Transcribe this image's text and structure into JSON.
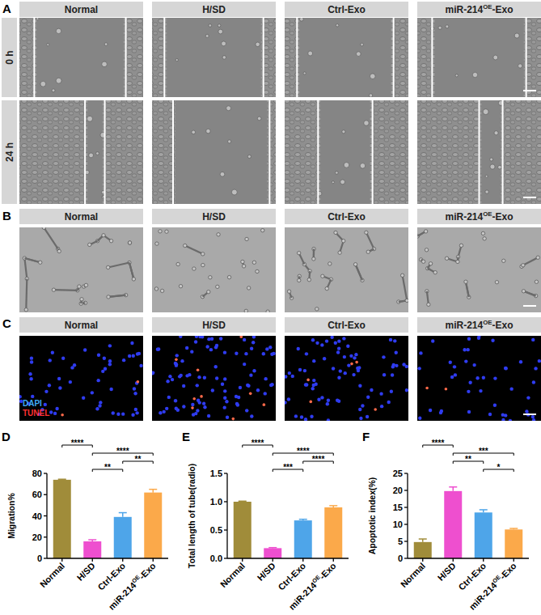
{
  "panels": [
    {
      "label": "A",
      "columns": [
        "Normal",
        "H/SD",
        "Ctrl-Exo",
        "miR-214OE-Exo"
      ],
      "rows": [
        "0 h",
        "24 h"
      ]
    },
    {
      "label": "B",
      "columns": [
        "Normal",
        "H/SD",
        "Ctrl-Exo",
        "miR-214OE-Exo"
      ]
    },
    {
      "label": "C",
      "columns": [
        "Normal",
        "H/SD",
        "Ctrl-Exo",
        "miR-214OE-Exo"
      ],
      "stain_labels": [
        "DAPI",
        "TUNEL"
      ]
    }
  ],
  "chart_data": [
    {
      "panel_label": "D",
      "type": "bar",
      "y_label": "Migration%",
      "categories": [
        "Normal",
        "H/SD",
        "Ctrl-Exo",
        "miR-214OE-Exo"
      ],
      "values": [
        74,
        16,
        39,
        62
      ],
      "errors": [
        0.5,
        1.5,
        4,
        3
      ],
      "colors": [
        "#a08c3a",
        "#ee4fcf",
        "#4ea5e9",
        "#fba94a"
      ],
      "ylim": [
        0,
        80
      ],
      "yticks": [
        0,
        20,
        40,
        60,
        80
      ],
      "comparisons": [
        {
          "between": [
            "H/SD",
            "Ctrl-Exo"
          ],
          "label": "**"
        },
        {
          "between": [
            "Ctrl-Exo",
            "miR-214OE-Exo"
          ],
          "label": "**"
        },
        {
          "between": [
            "H/SD",
            "miR-214OE-Exo"
          ],
          "label": "****"
        },
        {
          "between": [
            "Normal",
            "H/SD"
          ],
          "label": "****"
        }
      ]
    },
    {
      "panel_label": "E",
      "type": "bar",
      "y_label": "Total length of tube(radio)",
      "categories": [
        "Normal",
        "H/SD",
        "Ctrl-Exo",
        "miR-214OE-Exo"
      ],
      "values": [
        1.0,
        0.18,
        0.67,
        0.9
      ],
      "errors": [
        0.01,
        0.01,
        0.02,
        0.03
      ],
      "colors": [
        "#a08c3a",
        "#ee4fcf",
        "#4ea5e9",
        "#fba94a"
      ],
      "ylim": [
        0,
        1.5
      ],
      "yticks": [
        {
          "value": 0,
          "label": "0.0"
        },
        {
          "value": 0.5,
          "label": "0.5"
        },
        {
          "value": 1,
          "label": "1.0"
        },
        {
          "value": 1.5,
          "label": "1.5"
        }
      ],
      "comparisons": [
        {
          "between": [
            "H/SD",
            "Ctrl-Exo"
          ],
          "label": "***"
        },
        {
          "between": [
            "Ctrl-Exo",
            "miR-214OE-Exo"
          ],
          "label": "****"
        },
        {
          "between": [
            "H/SD",
            "miR-214OE-Exo"
          ],
          "label": "****"
        },
        {
          "between": [
            "Normal",
            "H/SD"
          ],
          "label": "****"
        }
      ]
    },
    {
      "panel_label": "F",
      "type": "bar",
      "y_label": "Apoptotic index(%)",
      "categories": [
        "Normal",
        "H/SD",
        "Ctrl-Exo",
        "miR-214OE-Exo"
      ],
      "values": [
        4.8,
        19.8,
        13.5,
        8.5
      ],
      "errors": [
        0.9,
        1.2,
        0.8,
        0.3
      ],
      "colors": [
        "#a08c3a",
        "#ee4fcf",
        "#4ea5e9",
        "#fba94a"
      ],
      "ylim": [
        0,
        25
      ],
      "yticks": [
        0,
        5,
        10,
        15,
        20,
        25
      ],
      "comparisons": [
        {
          "between": [
            "Ctrl-Exo",
            "miR-214OE-Exo"
          ],
          "label": "*"
        },
        {
          "between": [
            "H/SD",
            "Ctrl-Exo"
          ],
          "label": "**"
        },
        {
          "between": [
            "H/SD",
            "miR-214OE-Exo"
          ],
          "label": "***"
        },
        {
          "between": [
            "Normal",
            "H/SD"
          ],
          "label": "****"
        }
      ]
    }
  ]
}
